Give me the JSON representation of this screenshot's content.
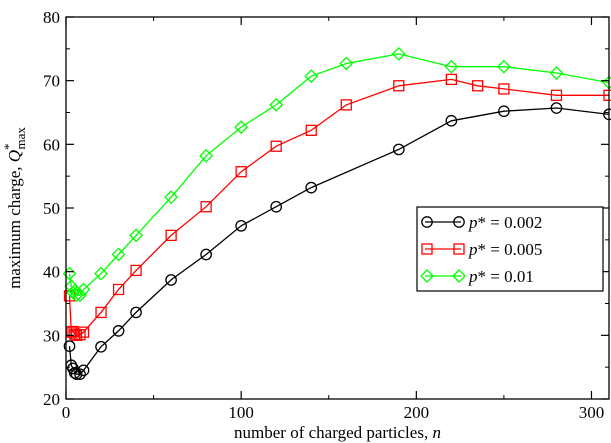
{
  "chart_data": {
    "type": "line",
    "xlabel": "number of charged particles, n",
    "ylabel": "maximum charge, Q*max",
    "xlim": [
      0,
      310
    ],
    "ylim": [
      20,
      80
    ],
    "x_ticks": [
      0,
      100,
      200,
      300
    ],
    "y_ticks": [
      20,
      30,
      40,
      50,
      60,
      70,
      80
    ],
    "grid": false,
    "legend_position": "center-right",
    "series": [
      {
        "name": "p* = 0.002",
        "color": "#000000",
        "marker": "circle",
        "x": [
          2,
          3,
          4,
          5,
          6,
          8,
          10,
          20,
          30,
          40,
          60,
          80,
          100,
          120,
          140,
          190,
          220,
          250,
          280,
          310
        ],
        "y": [
          28.3,
          25.3,
          24.8,
          24.1,
          23.9,
          23.9,
          24.5,
          28.2,
          30.7,
          33.6,
          38.7,
          42.7,
          47.2,
          50.2,
          53.2,
          59.2,
          63.7,
          65.2,
          65.7,
          64.7
        ]
      },
      {
        "name": "p* = 0.005",
        "color": "#ff0000",
        "marker": "square",
        "x": [
          2,
          3,
          4,
          5,
          6,
          8,
          10,
          20,
          30,
          40,
          60,
          80,
          100,
          120,
          140,
          160,
          190,
          220,
          235,
          250,
          280,
          310
        ],
        "y": [
          36.2,
          30.5,
          30.6,
          30.2,
          30.0,
          30.1,
          30.5,
          33.6,
          37.2,
          40.2,
          45.7,
          50.2,
          55.7,
          59.7,
          62.2,
          66.2,
          69.2,
          70.2,
          69.2,
          68.7,
          67.7,
          67.7
        ]
      },
      {
        "name": "p* = 0.01",
        "color": "#00ff00",
        "marker": "diamond",
        "x": [
          2,
          3,
          4,
          5,
          6,
          8,
          10,
          20,
          30,
          40,
          60,
          80,
          100,
          120,
          140,
          160,
          190,
          220,
          250,
          280,
          310
        ],
        "y": [
          39.7,
          37.7,
          36.7,
          37.0,
          36.3,
          36.3,
          37.2,
          39.7,
          42.7,
          45.7,
          51.7,
          58.2,
          62.7,
          66.2,
          70.7,
          72.7,
          74.2,
          72.2,
          72.2,
          71.2,
          69.7
        ]
      }
    ]
  }
}
